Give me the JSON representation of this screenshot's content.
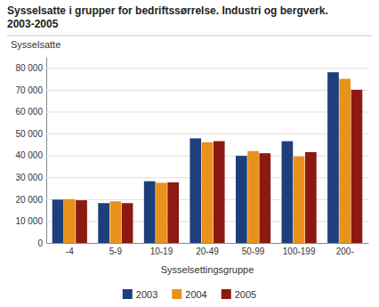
{
  "chart_data": {
    "type": "bar",
    "title": "Sysselsatte i grupper for bedriftssørrelse. Industri og bergverk.",
    "subtitle": "2003-2005",
    "y_label": "Sysselsatte",
    "x_label": "Sysselsettingsgruppe",
    "categories": [
      "-4",
      "5-9",
      "10-19",
      "20-49",
      "50-99",
      "100-199",
      "200-"
    ],
    "series": [
      {
        "name": "2003",
        "color": "#1F3F7A",
        "values": [
          19800,
          18200,
          28200,
          47800,
          39800,
          46500,
          78000
        ]
      },
      {
        "name": "2004",
        "color": "#E8921C",
        "values": [
          20000,
          19000,
          27500,
          46000,
          42000,
          39500,
          75000
        ]
      },
      {
        "name": "2005",
        "color": "#8B1A10",
        "values": [
          19500,
          18200,
          27700,
          46500,
          41000,
          41500,
          70000
        ]
      }
    ],
    "ylim": [
      0,
      85000
    ],
    "yticks": [
      0,
      {
        "value": 10000,
        "label": "10 000"
      },
      {
        "value": 20000,
        "label": "20 000"
      },
      {
        "value": 30000,
        "label": "30 000"
      },
      {
        "value": 40000,
        "label": "40 000"
      },
      {
        "value": 50000,
        "label": "50 000"
      },
      {
        "value": 60000,
        "label": "60 000"
      },
      {
        "value": 70000,
        "label": "70 000"
      },
      {
        "value": 80000,
        "label": "80 000"
      }
    ],
    "grid": true,
    "legend": "bottom"
  }
}
